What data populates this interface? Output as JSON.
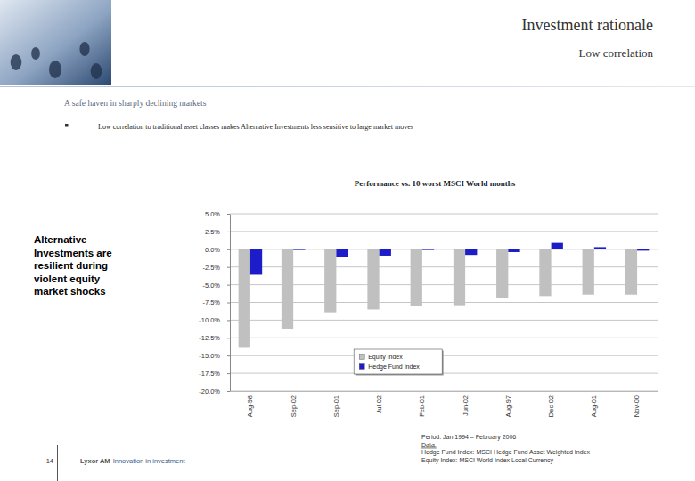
{
  "header": {
    "title": "Investment rationale",
    "subtitle": "Low correlation"
  },
  "intro": {
    "heading": "A safe haven in sharply declining markets",
    "bullet": "Low correlation to traditional asset classes makes Alternative Investments less sensitive to large market moves"
  },
  "annotation": [
    "Alternative",
    "Investments are",
    "resilient during",
    "violent equity",
    "market shocks"
  ],
  "chart_data": {
    "type": "bar",
    "title": "Performance vs. 10 worst MSCI World months",
    "categories": [
      "Aug-98",
      "Sep-02",
      "Sep-01",
      "Jul-02",
      "Feb-01",
      "Jun-02",
      "Aug-97",
      "Dec-02",
      "Aug-01",
      "Nov-00"
    ],
    "series": [
      {
        "name": "Equity Index",
        "color": "#c0c0c0",
        "values": [
          -13.9,
          -11.2,
          -8.9,
          -8.5,
          -8.0,
          -7.9,
          -6.9,
          -6.6,
          -6.4,
          -6.4
        ]
      },
      {
        "name": "Hedge Fund Index",
        "color": "#1c1cc8",
        "values": [
          -3.6,
          -0.1,
          -1.1,
          -0.9,
          -0.1,
          -0.8,
          -0.4,
          0.9,
          0.3,
          -0.2
        ]
      }
    ],
    "ylim": [
      -20,
      5
    ],
    "yticks": [
      {
        "value": 5,
        "label": "5.0%"
      },
      {
        "value": 2.5,
        "label": "2.5%"
      },
      {
        "value": 0,
        "label": "0.0%"
      },
      {
        "value": -2.5,
        "label": "-2.5%"
      },
      {
        "value": -5,
        "label": "-5.0%"
      },
      {
        "value": -7.5,
        "label": "-7.5%"
      },
      {
        "value": -10,
        "label": "-10.0%"
      },
      {
        "value": -12.5,
        "label": "-12.5%"
      },
      {
        "value": -15,
        "label": "-15.0%"
      },
      {
        "value": -17.5,
        "label": "-17.5%"
      },
      {
        "value": -20,
        "label": "-20.0%"
      }
    ],
    "grid": true,
    "legend": "bottom"
  },
  "footer": {
    "page_number": 14,
    "brand": "Lyxor AM",
    "tagline": "Innovation in investment",
    "notes": [
      "Period: Jan 1994 – February 2006",
      "Data:",
      "Hedge Fund Index: MSCI Hedge Fund Asset Weighted Index",
      "Equity Index: MSCI World Index Local Currency"
    ]
  }
}
